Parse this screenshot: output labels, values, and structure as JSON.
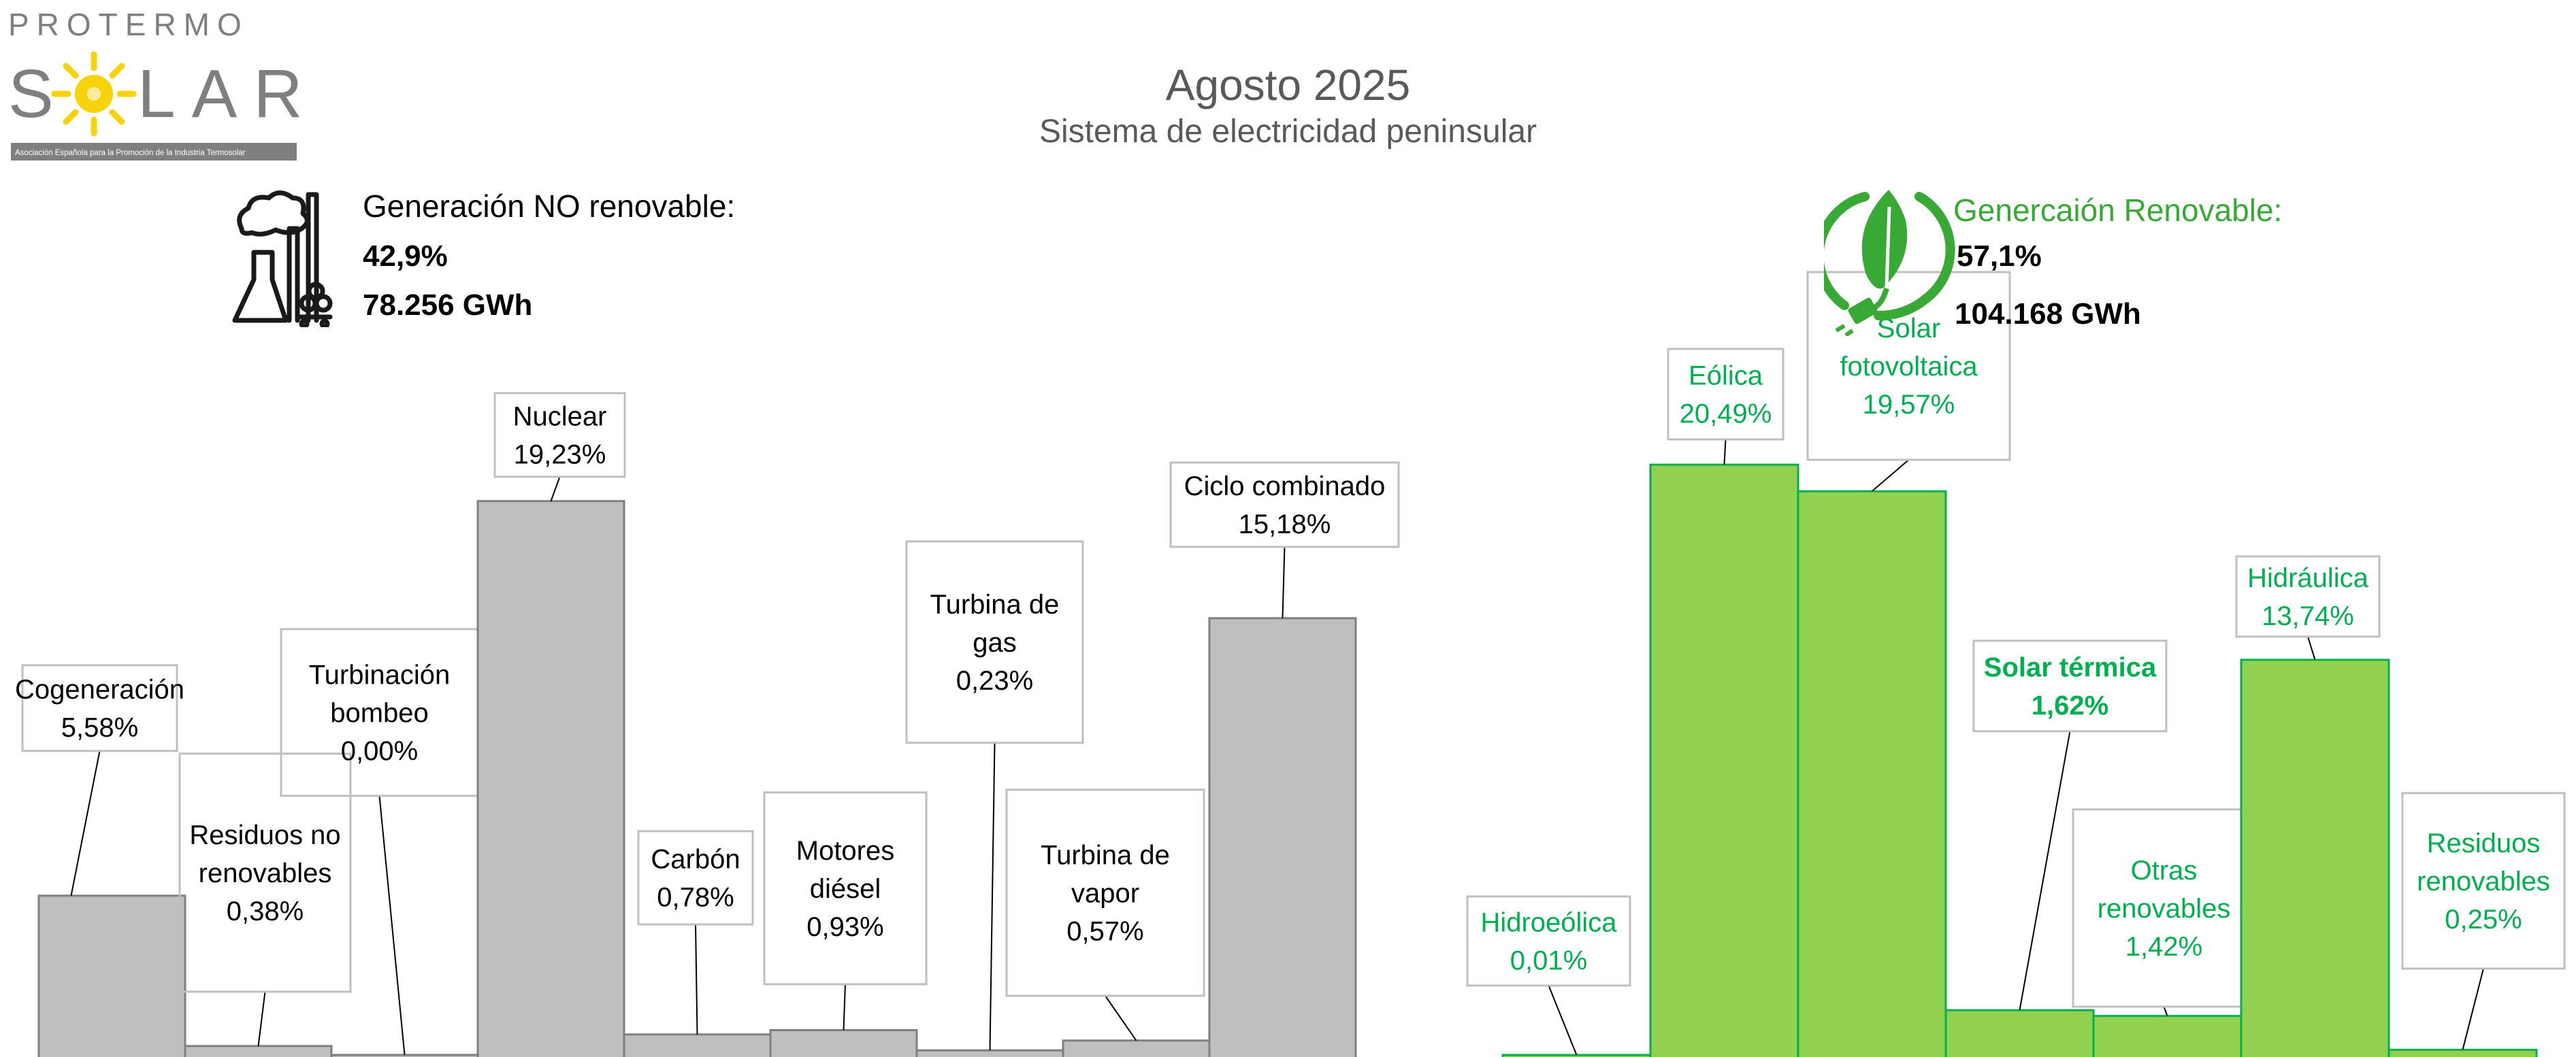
{
  "logo": {
    "top_text": "PROTERMO",
    "main_text_left": "S",
    "main_text_right": "LAR",
    "tagline": "Asociación Española para la Promoción de la Industria Termosolar"
  },
  "header": {
    "title": "Agosto 2025",
    "subtitle": "Sistema de electricidad peninsular"
  },
  "non_renewable": {
    "label": "Generación NO renovable:",
    "percent": "42,9%",
    "energy": "78.256 GWh",
    "icon": "power-plant-icon"
  },
  "renewable": {
    "label": "Generca​ión Renovable:",
    "percent": "57,1%",
    "energy": "104.168 GWh",
    "icon": "leaf-plug-icon"
  },
  "colors": {
    "non_renewable_bar": "#bfbfbf",
    "non_renewable_edge": "#7f7f7f",
    "renewable_bar": "#92d050",
    "renewable_edge": "#00b050",
    "renewable_text": "#00b050",
    "grey_text": "#595959"
  },
  "chart_data": [
    {
      "type": "bar",
      "group": "non_renewable",
      "categories": [
        "Cogeneración",
        "Residuos no renovables",
        "Turbinación bombeo",
        "Nuclear",
        "Carbón",
        "Motores diésel",
        "Turbina de gas",
        "Turbina de vapor",
        "Ciclo combinado"
      ],
      "values": [
        5.58,
        0.38,
        0.0,
        19.23,
        0.78,
        0.93,
        0.23,
        0.57,
        15.18
      ],
      "labels": [
        {
          "lines": [
            "Cogeneración"
          ],
          "value": "5,58%"
        },
        {
          "lines": [
            "Residuos no",
            "renovables"
          ],
          "value": "0,38%"
        },
        {
          "lines": [
            "Turbinación",
            "bombeo"
          ],
          "value": "0,00%"
        },
        {
          "lines": [
            "Nuclear"
          ],
          "value": "19,23%"
        },
        {
          "lines": [
            "Carbón"
          ],
          "value": "0,78%"
        },
        {
          "lines": [
            "Motores",
            "diésel"
          ],
          "value": "0,93%"
        },
        {
          "lines": [
            "Turbina de",
            "gas"
          ],
          "value": "0,23%"
        },
        {
          "lines": [
            "Turbina de",
            "vapor"
          ],
          "value": "0,57%"
        },
        {
          "lines": [
            "Ciclo combinado"
          ],
          "value": "15,18%"
        }
      ]
    },
    {
      "type": "bar",
      "group": "renewable",
      "categories": [
        "Hidroeólica",
        "Eólica",
        "Solar fotovoltaica",
        "Solar térmica",
        "Otras renovables",
        "Hidráulica",
        "Residuos renovables"
      ],
      "values": [
        0.01,
        20.49,
        19.57,
        1.62,
        1.42,
        13.74,
        0.25
      ],
      "labels": [
        {
          "lines": [
            "Hidroeólica"
          ],
          "value": "0,01%"
        },
        {
          "lines": [
            "Eólica"
          ],
          "value": "20,49%"
        },
        {
          "lines": [
            "Solar",
            "fotovoltaica"
          ],
          "value": "19,57%"
        },
        {
          "lines": [
            "Solar térmica"
          ],
          "value": "1,62%",
          "bold": true
        },
        {
          "lines": [
            "Otras",
            "renovables"
          ],
          "value": "1,42%"
        },
        {
          "lines": [
            "Hidráulica"
          ],
          "value": "13,74%"
        },
        {
          "lines": [
            "Residuos",
            "renovables"
          ],
          "value": "0,25%"
        }
      ]
    }
  ]
}
